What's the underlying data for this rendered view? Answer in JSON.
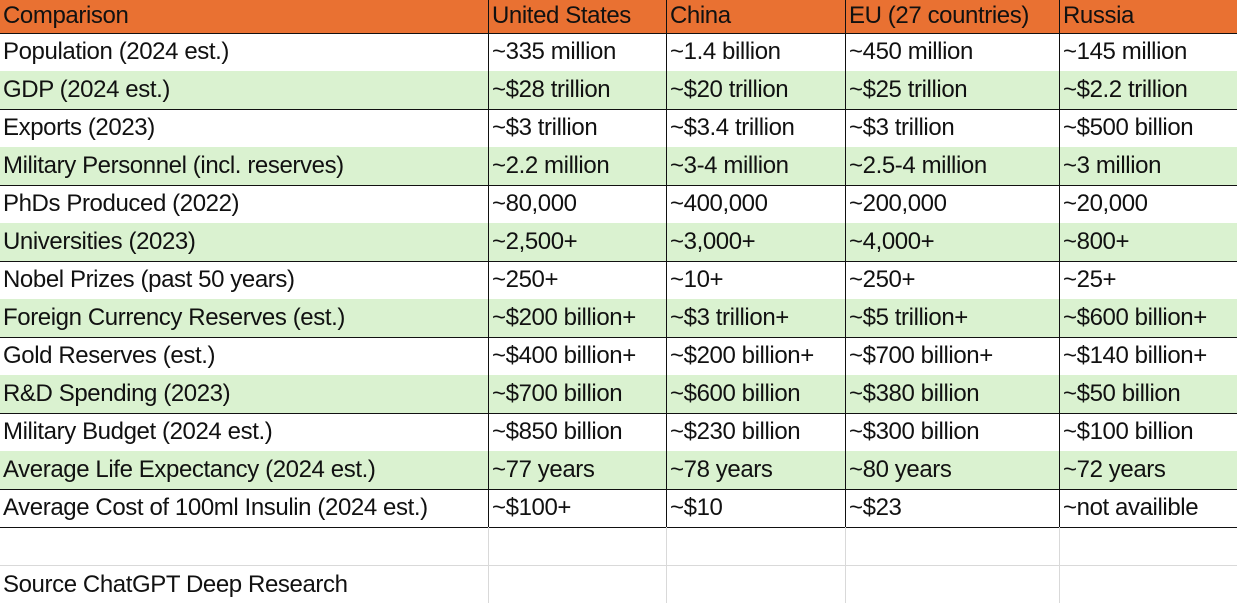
{
  "table": {
    "headers": [
      "Comparison",
      "United States",
      "China",
      "EU (27 countries)",
      "Russia"
    ],
    "rows": [
      [
        "Population (2024 est.)",
        "~335 million",
        "~1.4 billion",
        "~450 million",
        "~145 million"
      ],
      [
        "GDP (2024 est.)",
        "~$28 trillion",
        "~$20 trillion",
        "~$25 trillion",
        "~$2.2 trillion"
      ],
      [
        "Exports (2023)",
        "~$3 trillion",
        "~$3.4 trillion",
        "~$3 trillion",
        "~$500 billion"
      ],
      [
        "Military Personnel (incl. reserves)",
        "~2.2 million",
        "~3-4 million",
        "~2.5-4 million",
        "~3 million"
      ],
      [
        "PhDs Produced (2022)",
        "~80,000",
        "~400,000",
        "~200,000",
        "~20,000"
      ],
      [
        "Universities (2023)",
        "~2,500+",
        "~3,000+",
        "~4,000+",
        "~800+"
      ],
      [
        "Nobel Prizes (past 50 years)",
        "~250+",
        "~10+",
        "~250+",
        "~25+"
      ],
      [
        "Foreign Currency Reserves (est.)",
        "~$200 billion+",
        "~$3 trillion+",
        "~$5 trillion+",
        "~$600 billion+"
      ],
      [
        "Gold Reserves (est.)",
        "~$400 billion+",
        "~$200 billion+",
        "~$700 billion+",
        "~$140 billion+"
      ],
      [
        "R&D Spending (2023)",
        "~$700 billion",
        "~$600 billion",
        "~$380 billion",
        "~$50 billion"
      ],
      [
        "Military Budget (2024 est.)",
        "~$850 billion",
        "~$230 billion",
        "~$300 billion",
        "~$100 billion"
      ],
      [
        "Average Life Expectancy (2024 est.)",
        "~77 years",
        "~78 years",
        "~80 years",
        "~72 years"
      ],
      [
        "Average Cost of 100ml Insulin (2024 est.)",
        "~$100+",
        "~$10",
        "~$23",
        "~not availible"
      ]
    ]
  },
  "footer": {
    "source_note": "Source ChatGPT Deep Research"
  },
  "colors": {
    "header_bg": "#e97132",
    "alt_row_bg": "#daf2d0",
    "border": "#111111",
    "gridline": "#d9d9d9"
  }
}
